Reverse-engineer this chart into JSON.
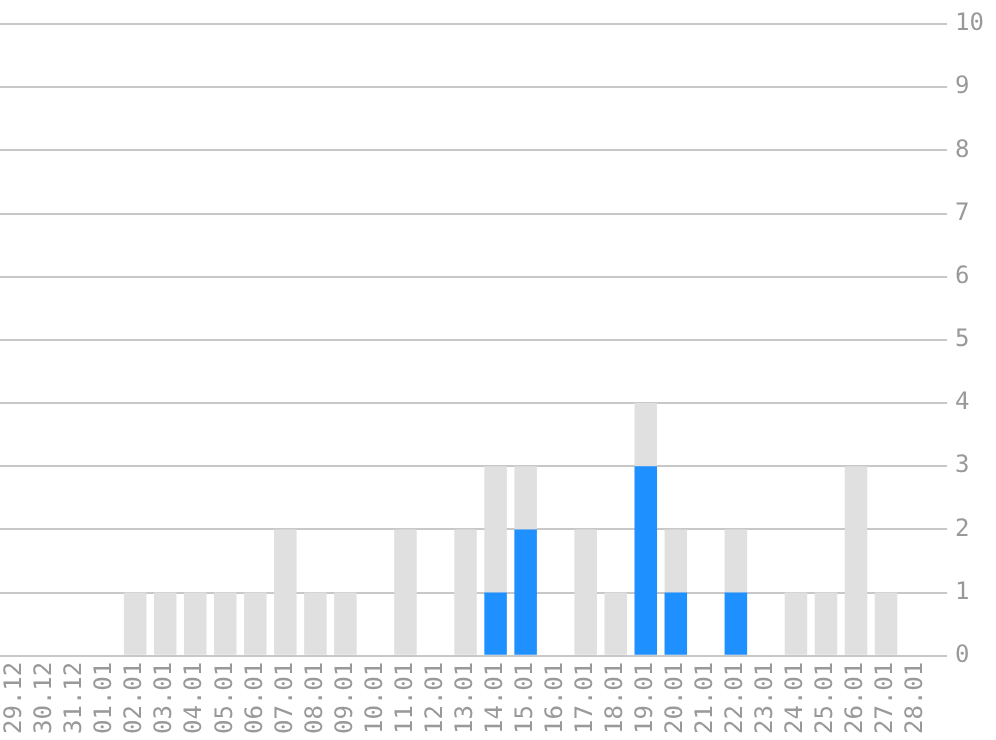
{
  "chart_data": {
    "type": "bar",
    "stacked": true,
    "categories": [
      "29.12",
      "30.12",
      "31.12",
      "01.01",
      "02.01",
      "03.01",
      "04.01",
      "05.01",
      "06.01",
      "07.01",
      "08.01",
      "09.01",
      "10.01",
      "11.01",
      "12.01",
      "13.01",
      "14.01",
      "15.01",
      "16.01",
      "17.01",
      "18.01",
      "19.01",
      "20.01",
      "21.01",
      "22.01",
      "23.01",
      "24.01",
      "25.01",
      "26.01",
      "27.01",
      "28.01"
    ],
    "series": [
      {
        "color": "#1e90ff",
        "values": [
          0,
          0,
          0,
          0,
          0,
          0,
          0,
          0,
          0,
          0,
          0,
          0,
          0,
          0,
          0,
          0,
          1,
          2,
          0,
          0,
          0,
          3,
          1,
          0,
          1,
          0,
          0,
          0,
          0,
          0,
          0
        ]
      },
      {
        "color": "#e0e0e0",
        "values": [
          0,
          0,
          0,
          0,
          1,
          1,
          1,
          1,
          1,
          2,
          1,
          1,
          0,
          2,
          0,
          2,
          2,
          1,
          0,
          2,
          1,
          1,
          1,
          0,
          1,
          0,
          1,
          1,
          3,
          1,
          0
        ]
      }
    ],
    "ylim": [
      0,
      10
    ],
    "yticks": [
      0,
      1,
      2,
      3,
      4,
      5,
      6,
      7,
      8,
      9,
      10
    ],
    "grid": "y",
    "legend": false
  }
}
